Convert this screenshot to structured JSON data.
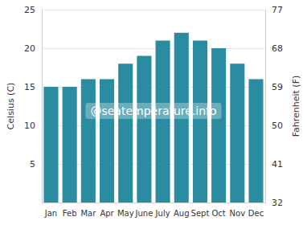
{
  "chart_data": {
    "type": "bar",
    "categories": [
      "Jan",
      "Feb",
      "Mar",
      "Apr",
      "May",
      "June",
      "July",
      "Aug",
      "Sept",
      "Oct",
      "Nov",
      "Dec"
    ],
    "values": [
      15,
      15,
      16,
      16,
      18,
      19,
      21,
      22,
      21,
      20,
      18,
      16
    ],
    "color": "#2a8ca0",
    "ylabel": "Celsius (C)",
    "ylim": [
      0,
      25
    ],
    "yticks": [
      5,
      10,
      15,
      20,
      25
    ],
    "y2label": "Fahrenheit (F)",
    "y2lim": [
      32,
      77
    ],
    "y2ticks": [
      32,
      41,
      50,
      59,
      68,
      77
    ],
    "annotation": "@seatemperature.info",
    "grid": true
  }
}
